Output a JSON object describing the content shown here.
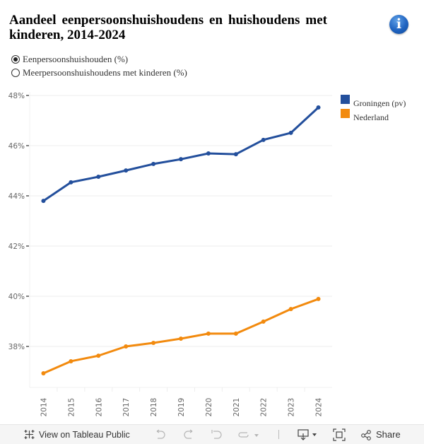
{
  "title": "Aandeel eenpersoonshuishoudens en huishoudens met kinderen, 2014-2024",
  "info_icon": "info-icon",
  "measure_selector": {
    "options": [
      {
        "label": "Eenpersoonshuishouden (%)",
        "selected": true
      },
      {
        "label": "Meerpersoonshuishoudens met kinderen (%)",
        "selected": false
      }
    ]
  },
  "legend": [
    {
      "label": "Groningen (pv)",
      "color": "#234f9c"
    },
    {
      "label": "Nederland",
      "color": "#f28a0e"
    }
  ],
  "chart_data": {
    "type": "line",
    "title": "Aandeel eenpersoonshuishoudens en huishoudens met kinderen, 2014-2024",
    "xlabel": "",
    "ylabel": "",
    "x": [
      "2014",
      "2015",
      "2016",
      "2017",
      "2018",
      "2019",
      "2020",
      "2021",
      "2022",
      "2023",
      "2024"
    ],
    "ylim": [
      36.3,
      48.1
    ],
    "yticks": [
      38,
      40,
      42,
      44,
      46,
      48
    ],
    "ytick_labels": [
      "38%",
      "40%",
      "42%",
      "44%",
      "46%",
      "48%"
    ],
    "grid": true,
    "legend_position": "top-right",
    "series": [
      {
        "name": "Groningen (pv)",
        "color": "#234f9c",
        "values": [
          43.8,
          44.54,
          44.76,
          45.01,
          45.27,
          45.46,
          45.69,
          45.66,
          46.23,
          46.51,
          47.52
        ]
      },
      {
        "name": "Nederland",
        "color": "#f28a0e",
        "values": [
          36.93,
          37.41,
          37.63,
          38.0,
          38.14,
          38.31,
          38.51,
          38.51,
          38.99,
          39.49,
          39.89
        ]
      }
    ]
  },
  "toolbar": {
    "view_on_public": "View on Tableau Public",
    "share": "Share"
  }
}
